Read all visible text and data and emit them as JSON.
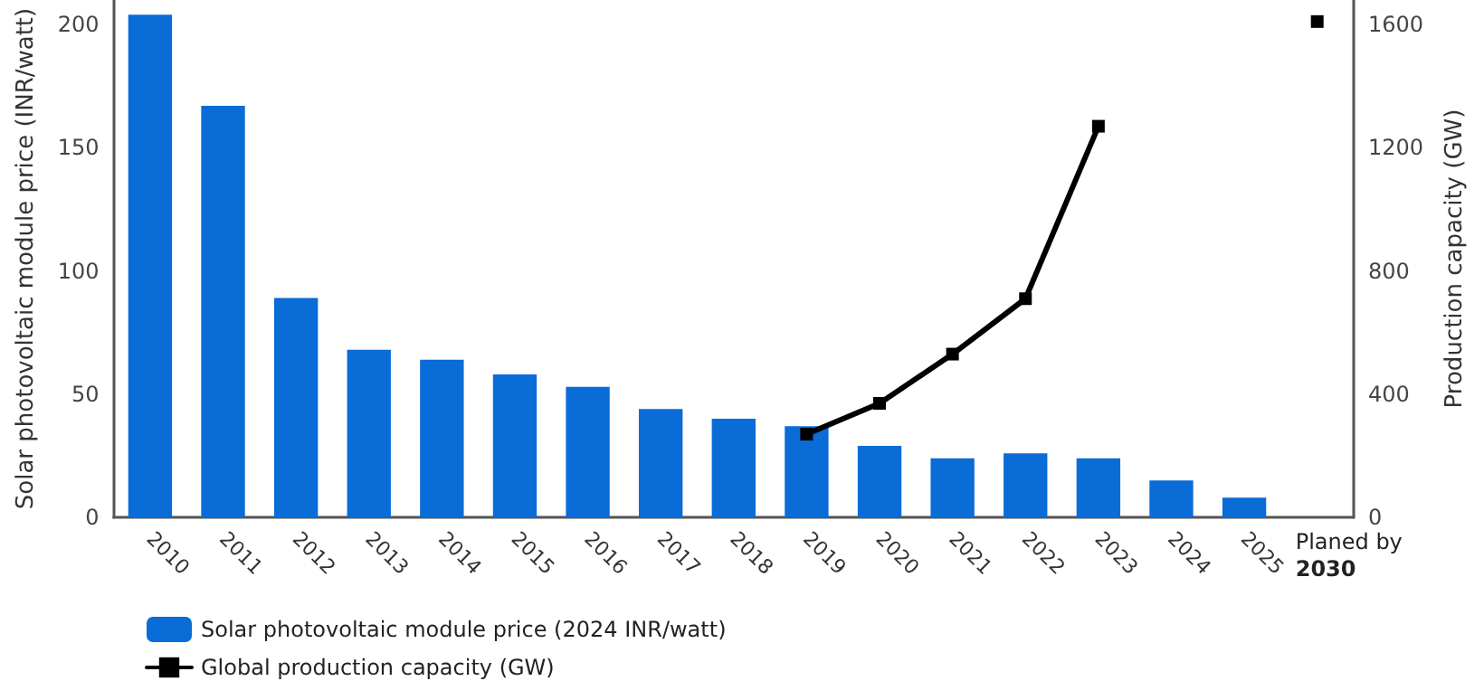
{
  "chart_data": {
    "type": "bar",
    "ylabel": "Solar photovoltaic module price (INR/watt)",
    "y2label": "Production capacity (GW)",
    "categories": [
      "2010",
      "2011",
      "2012",
      "2013",
      "2014",
      "2015",
      "2016",
      "2017",
      "2018",
      "2019",
      "2020",
      "2021",
      "2022",
      "2023",
      "2024",
      "2025",
      "Planed by\n2030"
    ],
    "series": [
      {
        "name": "Solar photovoltaic module price (2024 INR/watt)",
        "color": "#0a6cd6",
        "values": [
          204,
          167,
          89,
          68,
          64,
          58,
          53,
          44,
          40,
          37,
          29,
          24,
          26,
          24,
          15,
          8,
          null
        ]
      },
      {
        "name": "Global production capacity (GW)",
        "type": "line",
        "axis": "y2",
        "color": "#000000",
        "marker": "square",
        "line_style": "solid",
        "values": [
          null,
          null,
          null,
          null,
          null,
          null,
          null,
          null,
          null,
          270,
          370,
          530,
          710,
          1270,
          null,
          null,
          1610
        ]
      }
    ],
    "ylim": [
      0,
      210
    ],
    "yticks": [
      0,
      50,
      100,
      150,
      200
    ],
    "y2lim": [
      0,
      1680
    ],
    "y2ticks": [
      0,
      400,
      800,
      1200,
      1600
    ],
    "grid": false,
    "legend": "bottom left"
  }
}
